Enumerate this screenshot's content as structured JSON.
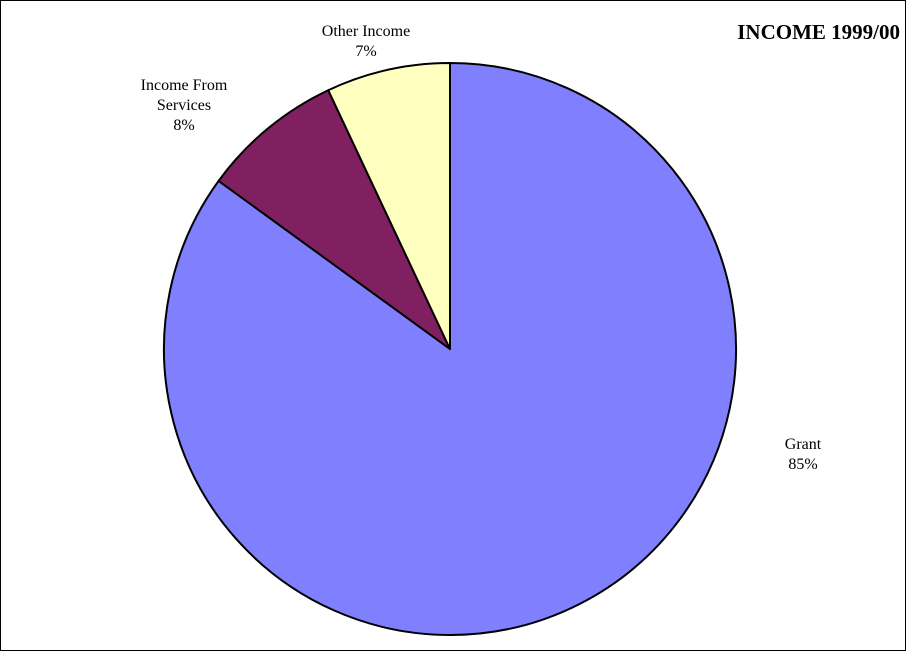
{
  "chart_data": {
    "type": "pie",
    "title": "INCOME 1999/00",
    "start_angle_deg": 0,
    "direction": "clockwise",
    "slices": [
      {
        "name": "Grant",
        "name_lines": [
          "Grant"
        ],
        "value": 85,
        "label": "85%",
        "color": "#8080ff"
      },
      {
        "name": "Income From Services",
        "name_lines": [
          "Income From",
          "Services"
        ],
        "value": 8,
        "label": "8%",
        "color": "#802060"
      },
      {
        "name": "Other Income",
        "name_lines": [
          "Other Income"
        ],
        "value": 7,
        "label": "7%",
        "color": "#ffffc0"
      }
    ]
  }
}
